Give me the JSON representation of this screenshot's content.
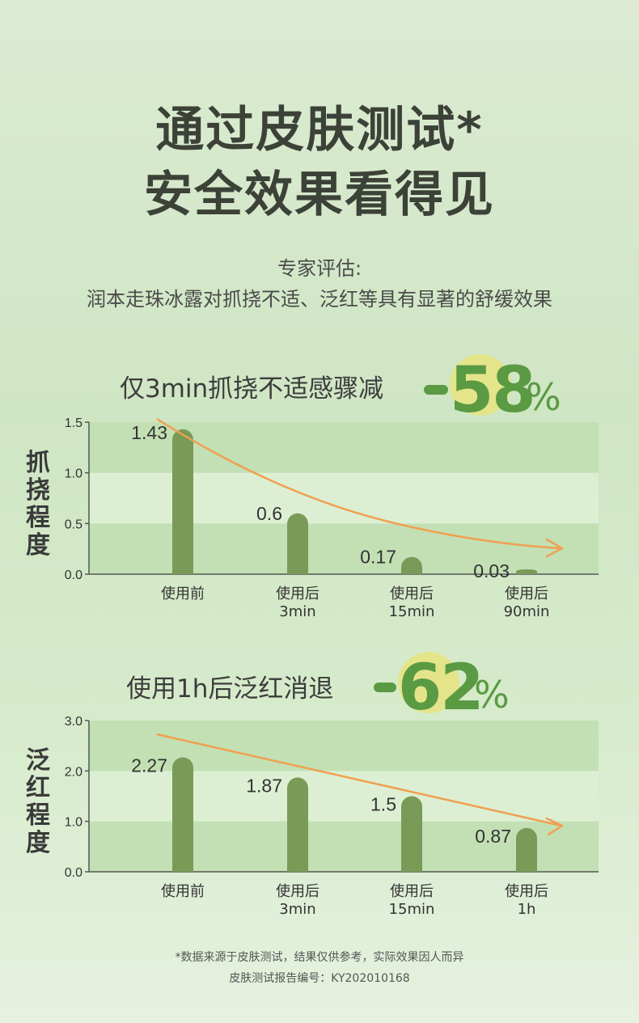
{
  "title_line1": "通过皮肤测试*",
  "title_line2": "安全效果看得见",
  "subtitle_line1": "专家评估:",
  "subtitle_line2": "润本走珠冰露对抓挠不适、泛红等具有显著的舒缓效果",
  "headline1": "仅3min抓挠不适感骤减",
  "highlight1": {
    "number": "58",
    "sign": "%"
  },
  "headline2": "使用1h后泛红消退",
  "highlight2": {
    "number": "62",
    "sign": "%"
  },
  "colors": {
    "bar": "#7a9a58",
    "trend_arrow": "#f0a050",
    "band_dark": "#c2e0b4",
    "band_light": "#dcefd3",
    "accent_green": "#5a9a43",
    "accent_yellow": "#e4e58b"
  },
  "footnote_line1": "*数据来源于皮肤测试，结果仅供参考，实际效果因人而异",
  "footnote_line2": "皮肤测试报告编号：KY202010168",
  "chart_data": [
    {
      "type": "bar",
      "ylabel": "抓挠程度",
      "ylim": [
        0,
        1.5
      ],
      "yticks": [
        "0.0",
        "0.5",
        "1.0",
        "1.5"
      ],
      "categories": [
        [
          "使用前"
        ],
        [
          "使用后",
          "3min"
        ],
        [
          "使用后",
          "15min"
        ],
        [
          "使用后",
          "90min"
        ]
      ],
      "values": [
        1.43,
        0.6,
        0.17,
        0.03
      ],
      "value_labels": [
        "1.43",
        "0.6",
        "0.17",
        "0.03"
      ],
      "trend_arrow": true
    },
    {
      "type": "bar",
      "ylabel": "泛红程度",
      "ylim": [
        0,
        3.0
      ],
      "yticks": [
        "0.0",
        "1.0",
        "2.0",
        "3.0"
      ],
      "categories": [
        [
          "使用前"
        ],
        [
          "使用后",
          "3min"
        ],
        [
          "使用后",
          "15min"
        ],
        [
          "使用后",
          "1h"
        ]
      ],
      "values": [
        2.27,
        1.87,
        1.5,
        0.87
      ],
      "value_labels": [
        "2.27",
        "1.87",
        "1.5",
        "0.87"
      ],
      "trend_arrow": true
    }
  ]
}
